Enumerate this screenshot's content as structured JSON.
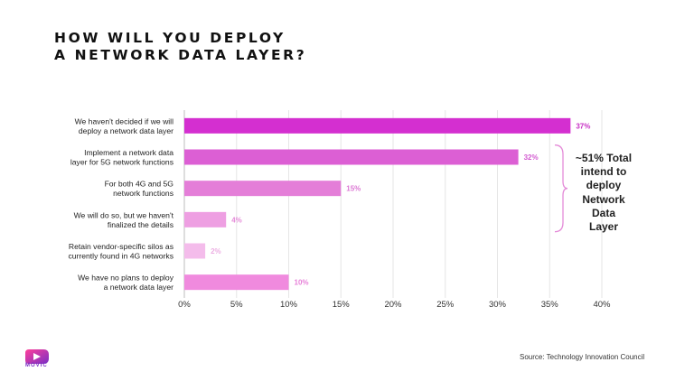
{
  "title_line1": "HOW WILL YOU DEPLOY",
  "title_line2": "A NETWORK DATA LAYER?",
  "callout": [
    "~51% Total",
    "intend to",
    "deploy",
    "Network Data",
    "Layer"
  ],
  "source": "Source: Technology Innovation Council",
  "logo_text": "MOVIC",
  "chart_data": {
    "type": "bar",
    "orientation": "horizontal",
    "categories": [
      [
        "We haven't  decided if we will",
        "deploy a network data layer"
      ],
      [
        "Implement a network data",
        "layer for 5G network functions"
      ],
      [
        "For both 4G and 5G",
        "network functions"
      ],
      [
        "We will do so, but we haven't",
        "finalized  the details"
      ],
      [
        "Retain vendor-specific silos as",
        "currently found in 4G networks"
      ],
      [
        "We have no plans to deploy",
        "a network data layer"
      ]
    ],
    "values": [
      37,
      32,
      15,
      4,
      2,
      10
    ],
    "data_labels": [
      "37%",
      "32%",
      "15%",
      "4%",
      "2%",
      "10%"
    ],
    "bar_colors": [
      "#d42fd0",
      "#dc5fd4",
      "#e47ed8",
      "#ee9fe2",
      "#f4bceb",
      "#f08ade"
    ],
    "label_colors": [
      "#c72fc4",
      "#d35bd0",
      "#dc78d4",
      "#e58ed9",
      "#ecaee3",
      "#e77fd8"
    ],
    "xticks": [
      0,
      5,
      10,
      15,
      20,
      25,
      30,
      35,
      40
    ],
    "xtick_labels": [
      "0%",
      "5%",
      "10%",
      "15%",
      "20%",
      "25%",
      "30%",
      "35%",
      "40%"
    ],
    "xlim": [
      0,
      40
    ],
    "grid": true
  }
}
